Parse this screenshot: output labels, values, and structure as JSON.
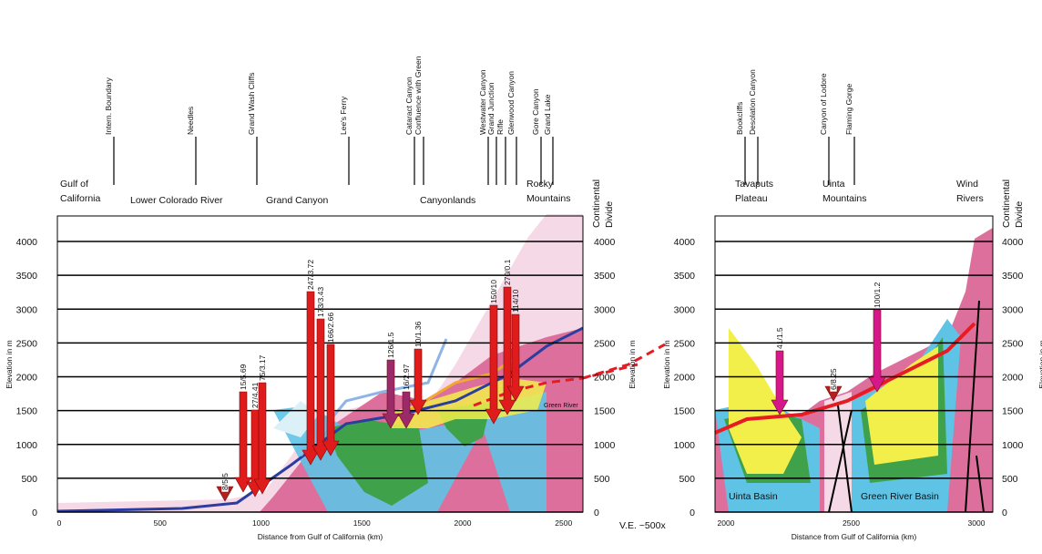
{
  "left_panel": {
    "place_names": [
      "Intern. Boundary",
      "Needles",
      "Grand Wash Cliffs",
      "Lee's Ferry",
      "Cataract Canyon",
      "Confluence with Green",
      "Westwater Canyon",
      "Grand Junction",
      "Rifle",
      "Glenwood Canyon",
      "Gore Canyon",
      "Grand Lake"
    ],
    "regions": [
      [
        "Gulf of",
        "California"
      ],
      [
        "Lower Colorado River"
      ],
      [
        "Grand Canyon"
      ],
      [
        "Canyonlands"
      ],
      [
        "Rocky",
        "Mountains"
      ]
    ],
    "divide_label": [
      "Continental",
      "Divide"
    ],
    "y_label": "Elevation in m",
    "y_ticks": [
      0,
      500,
      1000,
      1500,
      2000,
      2500,
      3000,
      3500,
      4000
    ],
    "x_label": "Distance from Gulf of California (km)",
    "x_ticks": [
      0,
      500,
      1000,
      1500,
      2000,
      2500
    ],
    "arrow_labels": [
      "8/5.5",
      "15/5.69",
      "27/4.41",
      "75/3.17",
      "247/3.72",
      "173/3.43",
      "166/2.66",
      "126/1.5",
      "16/2.97",
      "10/1.36",
      "150/10",
      "270/0.1",
      "114/10"
    ],
    "river_label": "Green River"
  },
  "right_panel": {
    "place_names": [
      "Bookcliffs",
      "Desolation Canyon",
      "Canyon of Lodore",
      "Flaming Gorge"
    ],
    "regions": [
      [
        "Tavaputs",
        "Plateau"
      ],
      [
        "Uinta",
        "Mountains"
      ],
      [
        "Wind",
        "Rivers"
      ]
    ],
    "divide_label": [
      "Continental",
      "Divide"
    ],
    "y_label": "Elevation in m",
    "y_ticks": [
      0,
      500,
      1000,
      1500,
      2000,
      2500,
      3000,
      3500,
      4000
    ],
    "x_label": "Distance from Gulf of California (km)",
    "x_ticks": [
      2000,
      2500,
      3000
    ],
    "arrow_labels": [
      "41/1.5",
      "6/8.25",
      "100/1.2"
    ],
    "basin_labels": [
      "Uinta Basin",
      "Green River Basin"
    ]
  },
  "ve_note": "V.E. ~500x"
}
